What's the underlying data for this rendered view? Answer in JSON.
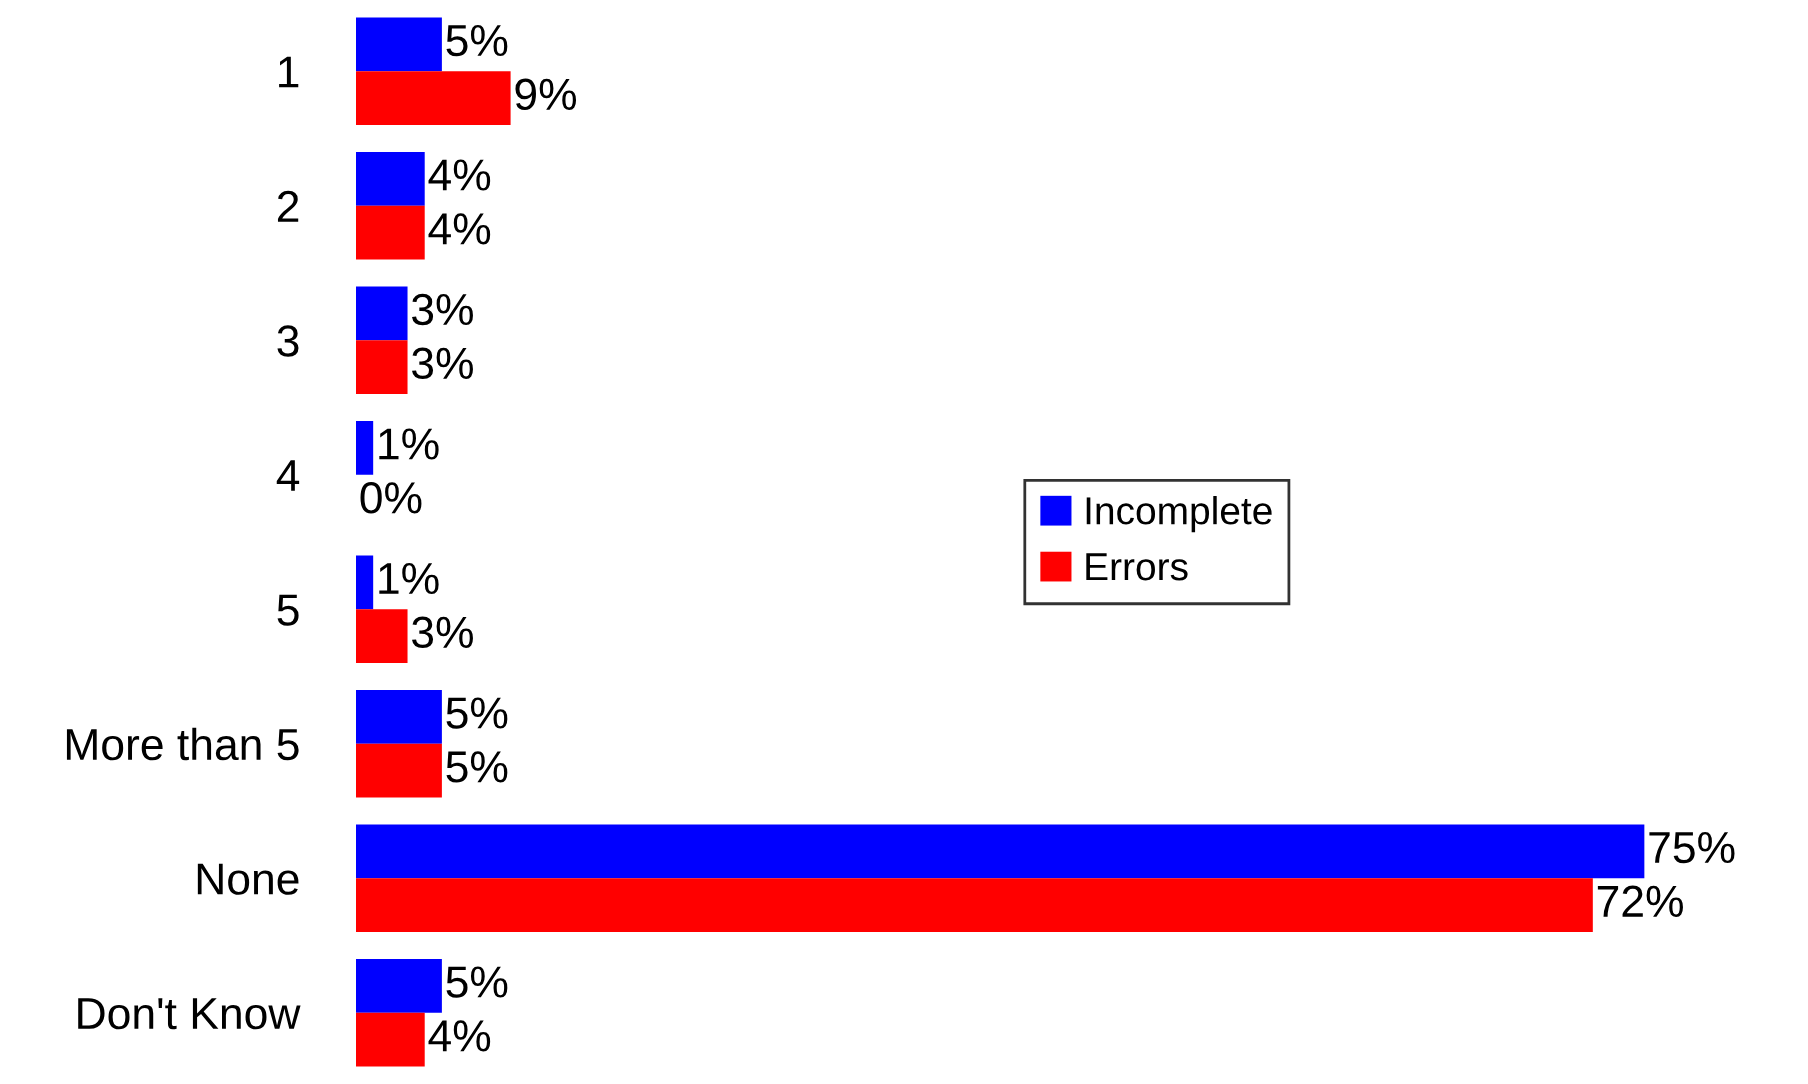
{
  "chart_data": {
    "type": "bar",
    "orientation": "horizontal",
    "categories": [
      "1",
      "2",
      "3",
      "4",
      "5",
      "More than 5",
      "None",
      "Don't Know"
    ],
    "series": [
      {
        "name": "Incomplete",
        "color": "#0000ff",
        "values": [
          5,
          4,
          3,
          1,
          1,
          5,
          75,
          5
        ],
        "value_labels": [
          "5%",
          "4%",
          "3%",
          "1%",
          "1%",
          "5%",
          "75%",
          "5%"
        ]
      },
      {
        "name": "Errors",
        "color": "#ff0000",
        "values": [
          9,
          4,
          3,
          0,
          3,
          5,
          72,
          4
        ],
        "value_labels": [
          "9%",
          "4%",
          "3%",
          "0%",
          "3%",
          "5%",
          "72%",
          "4%"
        ]
      }
    ],
    "legend": "right"
  }
}
